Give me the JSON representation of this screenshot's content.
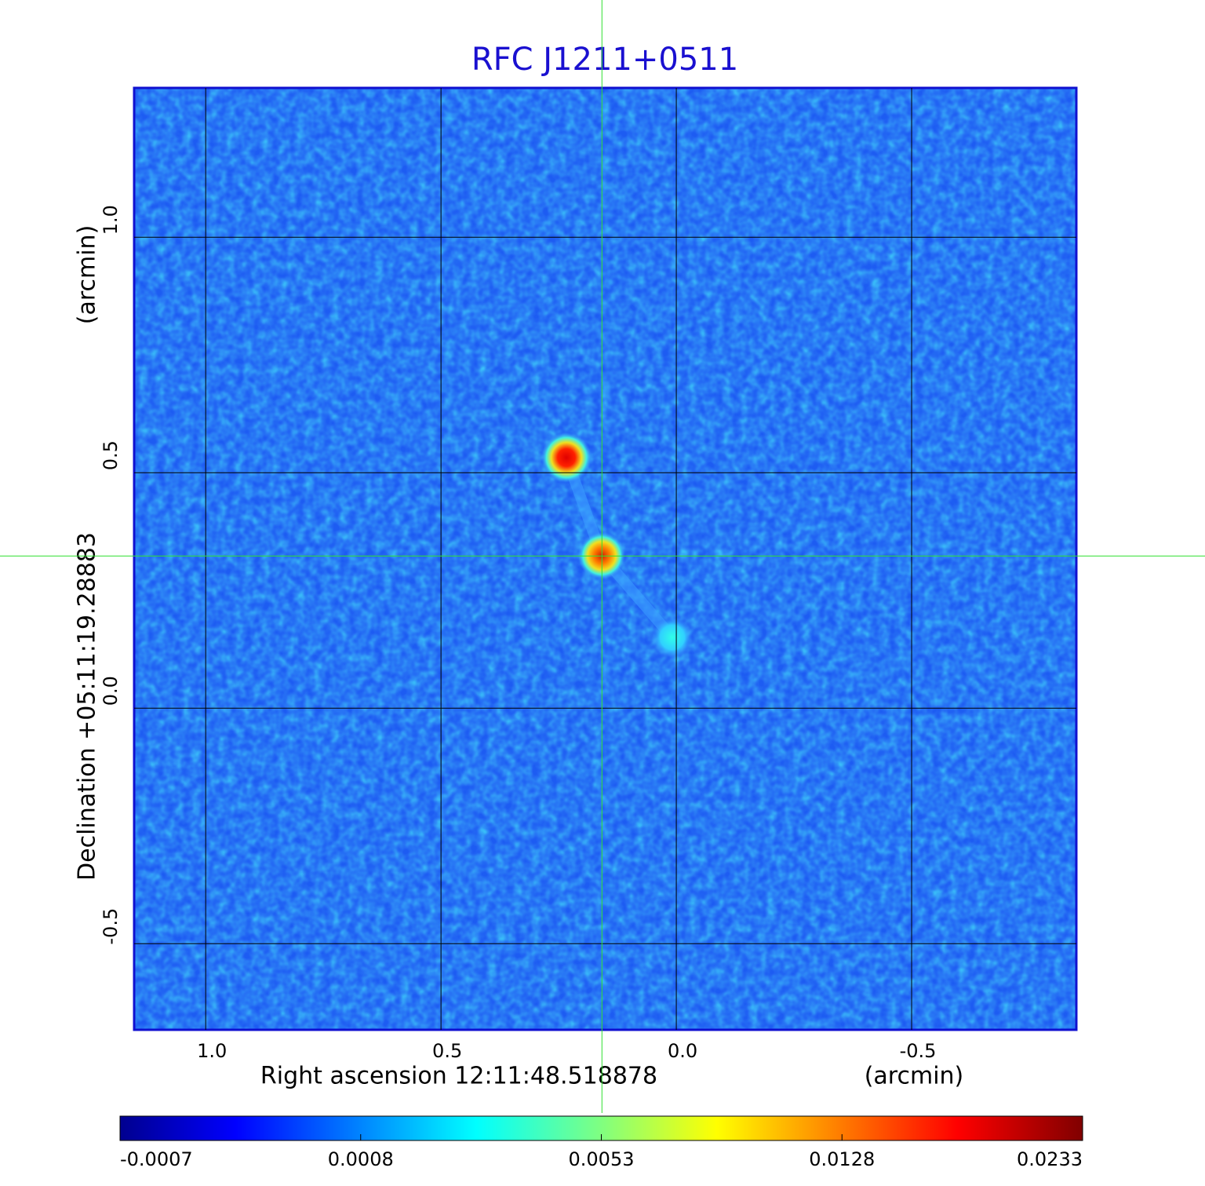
{
  "chart_data": {
    "type": "image",
    "title": "RFC J1211+0511",
    "x_label": "Right ascension  12:11:48.518878",
    "x_unit": "(arcmin)",
    "y_label": "Declination  +05:11:19.28883",
    "y_unit": "(arcmin)",
    "xlim": [
      1.152,
      -0.85
    ],
    "ylim": [
      -0.683,
      1.317
    ],
    "xticks": [
      {
        "value": 1.0,
        "label": "1.0"
      },
      {
        "value": 0.5,
        "label": "0.5"
      },
      {
        "value": 0.0,
        "label": "0.0"
      },
      {
        "value": -0.5,
        "label": "-0.5"
      }
    ],
    "yticks": [
      {
        "value": -0.5,
        "label": "-0.5"
      },
      {
        "value": 0.0,
        "label": "0.0"
      },
      {
        "value": 0.5,
        "label": "0.5"
      },
      {
        "value": 1.0,
        "label": "1.0"
      }
    ],
    "grid": true,
    "crosshair": [
      0.158,
      0.323
    ],
    "colorbar_ticks": [
      -0.0007,
      0.0008,
      0.0053,
      0.0128,
      0.0233
    ]
  }
}
